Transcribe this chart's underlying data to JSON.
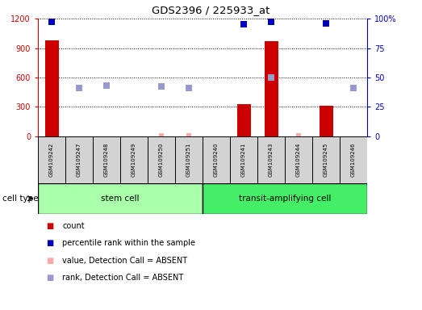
{
  "title": "GDS2396 / 225933_at",
  "samples": [
    "GSM109242",
    "GSM109247",
    "GSM109248",
    "GSM109249",
    "GSM109250",
    "GSM109251",
    "GSM109240",
    "GSM109241",
    "GSM109243",
    "GSM109244",
    "GSM109245",
    "GSM109246"
  ],
  "stem_cell_count": 6,
  "transit_cell_count": 6,
  "cell_type_labels": [
    "stem cell",
    "transit-amplifying cell"
  ],
  "count_values": [
    980,
    0,
    0,
    0,
    0,
    0,
    0,
    330,
    970,
    0,
    310,
    0
  ],
  "percentile_rank": [
    97,
    null,
    null,
    null,
    null,
    null,
    null,
    95,
    97,
    null,
    96,
    null
  ],
  "value_absent": [
    null,
    null,
    null,
    null,
    10,
    10,
    null,
    null,
    null,
    8,
    null,
    null
  ],
  "rank_absent": [
    null,
    490,
    520,
    null,
    510,
    490,
    null,
    null,
    600,
    null,
    null,
    490
  ],
  "ylim_left": [
    0,
    1200
  ],
  "ylim_right": [
    0,
    100
  ],
  "yticks_left": [
    0,
    300,
    600,
    900,
    1200
  ],
  "yticks_right": [
    0,
    25,
    50,
    75,
    100
  ],
  "yticklabels_right": [
    "0",
    "25",
    "50",
    "75",
    "100%"
  ],
  "count_color": "#cc0000",
  "count_absent_color": "#ffaaaa",
  "percentile_color": "#0000bb",
  "percentile_absent_color": "#9999cc",
  "bar_width": 0.5,
  "stem_cell_bg": "#aaffaa",
  "transit_cell_bg": "#44ee66",
  "sample_box_bg": "#d3d3d3",
  "legend_items": [
    {
      "label": "count",
      "color": "#cc0000"
    },
    {
      "label": "percentile rank within the sample",
      "color": "#0000bb"
    },
    {
      "label": "value, Detection Call = ABSENT",
      "color": "#ffaaaa"
    },
    {
      "label": "rank, Detection Call = ABSENT",
      "color": "#9999cc"
    }
  ]
}
